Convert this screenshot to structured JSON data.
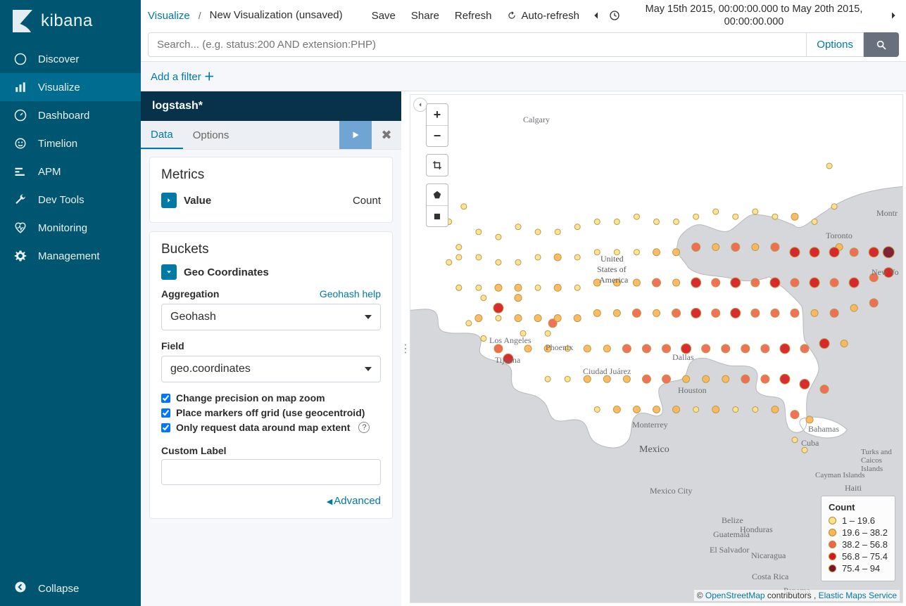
{
  "brand": {
    "name": "kibana"
  },
  "sidebar": {
    "items": [
      {
        "label": "Discover"
      },
      {
        "label": "Visualize"
      },
      {
        "label": "Dashboard"
      },
      {
        "label": "Timelion"
      },
      {
        "label": "APM"
      },
      {
        "label": "Dev Tools"
      },
      {
        "label": "Monitoring"
      },
      {
        "label": "Management"
      }
    ],
    "collapse_label": "Collapse"
  },
  "topbar": {
    "crumb_app": "Visualize",
    "crumb_sep": "/",
    "crumb_title": "New Visualization (unsaved)",
    "actions": {
      "save": "Save",
      "share": "Share",
      "refresh": "Refresh",
      "auto_refresh": "Auto-refresh"
    },
    "time_text": "May 15th 2015, 00:00:00.000 to May 20th 2015, 00:00:00.000"
  },
  "searchbar": {
    "placeholder": "Search... (e.g. status:200 AND extension:PHP)",
    "options_label": "Options"
  },
  "filterbar": {
    "add_filter": "Add a filter"
  },
  "config": {
    "index_pattern": "logstash*",
    "tabs": {
      "data": "Data",
      "options": "Options"
    },
    "metrics": {
      "title": "Metrics",
      "item_label": "Value",
      "item_type": "Count"
    },
    "buckets": {
      "title": "Buckets",
      "item_label": "Geo Coordinates",
      "agg_label": "Aggregation",
      "help_link": "Geohash help",
      "agg_value": "Geohash",
      "field_label": "Field",
      "field_value": "geo.coordinates",
      "cb1": "Change precision on map zoom",
      "cb2": "Place markers off grid (use geocentroid)",
      "cb3": "Only request data around map extent",
      "custom_label": "Custom Label",
      "advanced": "Advanced"
    }
  },
  "map": {
    "background": "#d5d7da",
    "land_fill": "#ffffff",
    "land_stroke": "#b6b9bd",
    "water_fill": "#d5d7da",
    "labels": {
      "calgary": "Calgary",
      "usa1": "United",
      "usa2": "States of",
      "usa3": "America",
      "los_angeles": "Los Angeles",
      "phoenix": "Phoenix",
      "tijuana": "Tijuana",
      "ciudad_juarez": "Ciudad Juárez",
      "dallas": "Dallas",
      "houston": "Houston",
      "monterrey": "Monterrey",
      "mexico": "Mexico",
      "mexico_city": "Mexico City",
      "guatemala": "Guatemala",
      "el_salvador": "El Salvador",
      "honduras": "Honduras",
      "nicaragua": "Nicaragua",
      "costa_rica": "Costa Rica",
      "panama": "Panama",
      "belize": "Belize",
      "cuba": "Cuba",
      "bahamas": "Bahamas",
      "haiti": "Haiti",
      "cayman": "Cayman Islands",
      "turks": "Turks and Caicos Islands",
      "toronto": "Toronto",
      "montreal": "Montr",
      "new_york": "New Yo"
    },
    "legend": {
      "title": "Count",
      "rows": [
        {
          "color": "#fde18b",
          "label": "1 – 19.6"
        },
        {
          "color": "#feb557",
          "label": "19.6 – 38.2"
        },
        {
          "color": "#f1654b",
          "label": "38.2 – 56.8"
        },
        {
          "color": "#d7191c",
          "label": "56.8 – 75.4"
        },
        {
          "color": "#7b1229",
          "label": "75.4 – 94"
        }
      ]
    },
    "attribution": {
      "prefix": "© ",
      "osm": "OpenStreetMap",
      "mid": " contributors , ",
      "ems": "Elastic Maps Service"
    },
    "heat": {
      "colors": {
        "c1": "#fde18b",
        "c2": "#feb557",
        "c3": "#f1654b",
        "c4": "#d7191c",
        "c5": "#7b1229"
      },
      "border": "#b99c4a",
      "points": [
        [
          11,
          22,
          1
        ],
        [
          85,
          14,
          1
        ],
        [
          86,
          22,
          1
        ],
        [
          87,
          30,
          2
        ],
        [
          29,
          45,
          3
        ],
        [
          22,
          40,
          2
        ],
        [
          18,
          42,
          4
        ],
        [
          15,
          40,
          1
        ],
        [
          10,
          30,
          1
        ],
        [
          10,
          38,
          1
        ],
        [
          12,
          45,
          1
        ],
        [
          15,
          48,
          1
        ],
        [
          18,
          50,
          2
        ],
        [
          23,
          47,
          1
        ],
        [
          28,
          47,
          1
        ],
        [
          8,
          33,
          1
        ],
        [
          8,
          25,
          1
        ],
        [
          14,
          27,
          1
        ],
        [
          18,
          28,
          1
        ],
        [
          22,
          26,
          1
        ],
        [
          26,
          27,
          1
        ],
        [
          30,
          27,
          1
        ],
        [
          34,
          26,
          1
        ],
        [
          38,
          25,
          1
        ],
        [
          42,
          25,
          1
        ],
        [
          46,
          24,
          1
        ],
        [
          50,
          25,
          1
        ],
        [
          54,
          25,
          1
        ],
        [
          58,
          24,
          1
        ],
        [
          62,
          23,
          1
        ],
        [
          66,
          24,
          1
        ],
        [
          70,
          23,
          1
        ],
        [
          74,
          24,
          1
        ],
        [
          78,
          24,
          2
        ],
        [
          82,
          25,
          1
        ],
        [
          10,
          32,
          1
        ],
        [
          14,
          32,
          1
        ],
        [
          18,
          33,
          1
        ],
        [
          22,
          33,
          1
        ],
        [
          26,
          32,
          1
        ],
        [
          30,
          32,
          2
        ],
        [
          34,
          32,
          1
        ],
        [
          38,
          31,
          1
        ],
        [
          42,
          31,
          1
        ],
        [
          46,
          31,
          1
        ],
        [
          50,
          31,
          2
        ],
        [
          54,
          31,
          2
        ],
        [
          58,
          30,
          3
        ],
        [
          62,
          30,
          2
        ],
        [
          66,
          30,
          3
        ],
        [
          70,
          30,
          2
        ],
        [
          74,
          30,
          3
        ],
        [
          78,
          31,
          4
        ],
        [
          82,
          31,
          4
        ],
        [
          86,
          31,
          4
        ],
        [
          90,
          31,
          3
        ],
        [
          94,
          31,
          4
        ],
        [
          97,
          31,
          5
        ],
        [
          10,
          38,
          1
        ],
        [
          14,
          38,
          1
        ],
        [
          18,
          38,
          2
        ],
        [
          22,
          38,
          2
        ],
        [
          26,
          38,
          1
        ],
        [
          30,
          38,
          2
        ],
        [
          34,
          38,
          1
        ],
        [
          38,
          37,
          2
        ],
        [
          42,
          37,
          2
        ],
        [
          46,
          37,
          2
        ],
        [
          50,
          37,
          3
        ],
        [
          54,
          37,
          2
        ],
        [
          58,
          37,
          4
        ],
        [
          62,
          37,
          3
        ],
        [
          66,
          37,
          4
        ],
        [
          70,
          37,
          3
        ],
        [
          74,
          37,
          4
        ],
        [
          78,
          37,
          3
        ],
        [
          82,
          37,
          4
        ],
        [
          86,
          37,
          3
        ],
        [
          90,
          37,
          4
        ],
        [
          94,
          36,
          3
        ],
        [
          97,
          35,
          4
        ],
        [
          14,
          44,
          2
        ],
        [
          18,
          44,
          1
        ],
        [
          22,
          44,
          2
        ],
        [
          26,
          44,
          2
        ],
        [
          30,
          44,
          2
        ],
        [
          34,
          44,
          2
        ],
        [
          38,
          43,
          2
        ],
        [
          42,
          43,
          2
        ],
        [
          46,
          43,
          3
        ],
        [
          50,
          43,
          2
        ],
        [
          54,
          43,
          3
        ],
        [
          58,
          43,
          4
        ],
        [
          62,
          43,
          3
        ],
        [
          66,
          43,
          4
        ],
        [
          70,
          43,
          3
        ],
        [
          74,
          43,
          3
        ],
        [
          78,
          43,
          3
        ],
        [
          82,
          43,
          2
        ],
        [
          86,
          43,
          3
        ],
        [
          90,
          42,
          2
        ],
        [
          94,
          41,
          3
        ],
        [
          18,
          50,
          3
        ],
        [
          20,
          52,
          4
        ],
        [
          24,
          50,
          2
        ],
        [
          28,
          50,
          2
        ],
        [
          32,
          50,
          1
        ],
        [
          36,
          50,
          2
        ],
        [
          40,
          50,
          2
        ],
        [
          44,
          50,
          3
        ],
        [
          48,
          50,
          3
        ],
        [
          52,
          50,
          3
        ],
        [
          56,
          50,
          4
        ],
        [
          60,
          50,
          3
        ],
        [
          64,
          50,
          3
        ],
        [
          68,
          50,
          3
        ],
        [
          72,
          50,
          3
        ],
        [
          76,
          50,
          4
        ],
        [
          80,
          50,
          3
        ],
        [
          84,
          49,
          4
        ],
        [
          88,
          49,
          2
        ],
        [
          28,
          56,
          1
        ],
        [
          32,
          56,
          1
        ],
        [
          36,
          56,
          2
        ],
        [
          40,
          56,
          2
        ],
        [
          44,
          56,
          2
        ],
        [
          48,
          56,
          3
        ],
        [
          52,
          56,
          3
        ],
        [
          56,
          56,
          2
        ],
        [
          60,
          56,
          2
        ],
        [
          64,
          56,
          2
        ],
        [
          68,
          56,
          3
        ],
        [
          72,
          56,
          3
        ],
        [
          76,
          56,
          4
        ],
        [
          80,
          57,
          4
        ],
        [
          84,
          58,
          3
        ],
        [
          38,
          62,
          1
        ],
        [
          42,
          62,
          2
        ],
        [
          46,
          62,
          2
        ],
        [
          50,
          62,
          2
        ],
        [
          54,
          62,
          2
        ],
        [
          58,
          62,
          1
        ],
        [
          62,
          62,
          2
        ],
        [
          66,
          62,
          1
        ],
        [
          70,
          62,
          1
        ],
        [
          74,
          62,
          2
        ],
        [
          78,
          63,
          3
        ],
        [
          81,
          64,
          2
        ],
        [
          78,
          68,
          1
        ],
        [
          80,
          70,
          1
        ]
      ]
    }
  }
}
